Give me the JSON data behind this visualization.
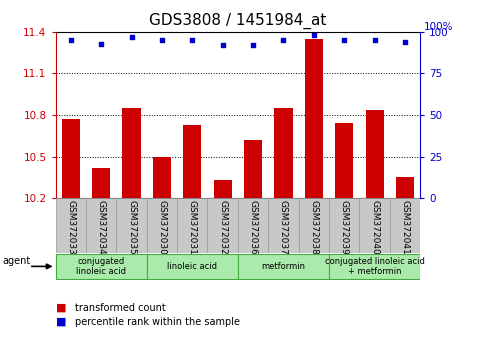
{
  "title": "GDS3808 / 1451984_at",
  "samples": [
    "GSM372033",
    "GSM372034",
    "GSM372035",
    "GSM372030",
    "GSM372031",
    "GSM372032",
    "GSM372036",
    "GSM372037",
    "GSM372038",
    "GSM372039",
    "GSM372040",
    "GSM372041"
  ],
  "transformed_counts": [
    10.77,
    10.42,
    10.85,
    10.5,
    10.73,
    10.33,
    10.62,
    10.85,
    11.35,
    10.74,
    10.84,
    10.35
  ],
  "percentile_ranks": [
    95,
    93,
    97,
    95,
    95,
    92,
    92,
    95,
    98,
    95,
    95,
    94
  ],
  "ylim_left": [
    10.2,
    11.4
  ],
  "ylim_right": [
    0,
    100
  ],
  "yticks_left": [
    10.2,
    10.5,
    10.8,
    11.1,
    11.4
  ],
  "yticks_right": [
    0,
    25,
    50,
    75,
    100
  ],
  "bar_color": "#cc0000",
  "dot_color": "#0000cc",
  "plot_bg": "#ffffff",
  "agent_groups": [
    {
      "label": "conjugated\nlinoleic acid",
      "start": 0,
      "end": 3,
      "color": "#aaeaaa"
    },
    {
      "label": "linoleic acid",
      "start": 3,
      "end": 6,
      "color": "#aaeaaa"
    },
    {
      "label": "metformin",
      "start": 6,
      "end": 9,
      "color": "#aaeaaa"
    },
    {
      "label": "conjugated linoleic acid\n+ metformin",
      "start": 9,
      "end": 12,
      "color": "#aaeaaa"
    }
  ],
  "xlabel_agent": "agent",
  "legend_bar_label": "transformed count",
  "legend_dot_label": "percentile rank within the sample",
  "title_fontsize": 11,
  "tick_fontsize": 7.5,
  "sample_fontsize": 6.5,
  "agent_fontsize": 6,
  "legend_fontsize": 7
}
